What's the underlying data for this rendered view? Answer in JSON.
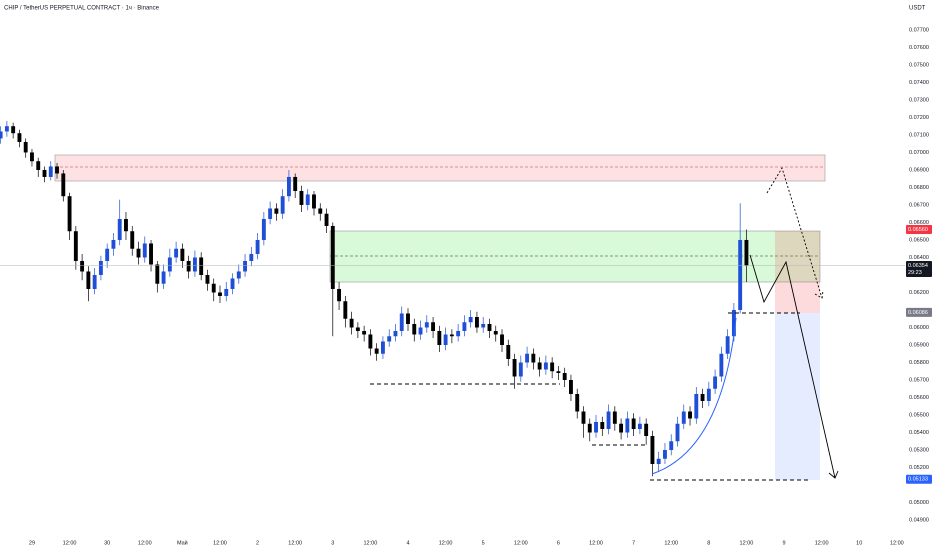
{
  "chart_data": {
    "type": "candlestick",
    "title": "CHIP / TetherUS PERPETUAL CONTRACT · 1ч · Binance",
    "currency": "USDT",
    "up_color": "#1f4fd6",
    "down_color": "#000000",
    "x": [
      -10,
      -8,
      -6,
      -4,
      -2,
      0,
      2,
      4,
      6,
      8,
      10,
      12,
      14,
      16,
      18,
      20,
      22,
      24,
      26,
      28,
      30,
      32,
      34,
      36,
      38,
      40,
      42,
      44,
      46,
      48,
      50,
      52,
      54,
      56,
      58,
      60,
      62,
      64,
      66,
      68,
      70,
      72,
      74,
      76,
      78,
      80,
      82,
      84,
      86,
      88,
      90,
      92,
      94,
      96,
      98,
      100,
      102,
      104,
      106,
      108,
      110,
      112,
      114,
      116,
      118,
      120,
      122,
      124,
      126,
      128,
      130,
      132,
      134,
      136,
      138,
      140,
      142,
      144,
      146,
      148,
      150,
      152,
      154,
      156,
      158,
      160,
      162,
      164,
      166,
      168,
      170,
      172,
      174,
      176,
      178,
      180,
      182,
      184,
      186,
      188,
      190,
      192,
      194,
      196,
      198,
      200,
      202,
      204,
      206,
      208,
      210,
      212,
      214,
      216,
      218,
      220,
      222,
      224,
      226,
      228
    ],
    "open": [
      0.0708,
      0.0712,
      0.0715,
      0.0711,
      0.0706,
      0.07,
      0.0695,
      0.069,
      0.0686,
      0.0692,
      0.0688,
      0.0675,
      0.0655,
      0.0638,
      0.0632,
      0.0622,
      0.063,
      0.0638,
      0.0645,
      0.065,
      0.0662,
      0.0655,
      0.0645,
      0.064,
      0.0648,
      0.0636,
      0.0625,
      0.0632,
      0.064,
      0.0645,
      0.0638,
      0.0632,
      0.064,
      0.063,
      0.0625,
      0.062,
      0.0618,
      0.0622,
      0.0628,
      0.0632,
      0.0638,
      0.0642,
      0.065,
      0.0662,
      0.0668,
      0.0665,
      0.0675,
      0.0686,
      0.0678,
      0.067,
      0.0676,
      0.0668,
      0.0665,
      0.0658,
      0.0622,
      0.0615,
      0.0605,
      0.06,
      0.0598,
      0.0596,
      0.0588,
      0.0585,
      0.0592,
      0.0595,
      0.0598,
      0.0608,
      0.0602,
      0.0596,
      0.06,
      0.0603,
      0.0598,
      0.059,
      0.0596,
      0.0595,
      0.0598,
      0.0603,
      0.0606,
      0.06,
      0.0602,
      0.0598,
      0.0596,
      0.059,
      0.0582,
      0.0572,
      0.058,
      0.0585,
      0.058,
      0.0576,
      0.058,
      0.0575,
      0.0574,
      0.057,
      0.0562,
      0.0552,
      0.0545,
      0.054,
      0.0546,
      0.0542,
      0.0552,
      0.0545,
      0.054,
      0.0548,
      0.0542,
      0.0545,
      0.0538,
      0.0522,
      0.0525,
      0.053,
      0.0535,
      0.0545,
      0.0552,
      0.0548,
      0.0562,
      0.0558,
      0.0565,
      0.0572,
      0.0585,
      0.0595,
      0.061,
      0.065
    ],
    "high": [
      0.0715,
      0.0718,
      0.0717,
      0.0713,
      0.0708,
      0.0702,
      0.0697,
      0.0692,
      0.0695,
      0.0694,
      0.069,
      0.0677,
      0.0658,
      0.0642,
      0.0635,
      0.0634,
      0.0641,
      0.0648,
      0.0654,
      0.0673,
      0.0666,
      0.0658,
      0.0649,
      0.0652,
      0.065,
      0.0638,
      0.0636,
      0.0645,
      0.0649,
      0.0648,
      0.0641,
      0.0644,
      0.0643,
      0.0633,
      0.0628,
      0.0624,
      0.0626,
      0.0631,
      0.0636,
      0.0642,
      0.0646,
      0.0654,
      0.0666,
      0.0672,
      0.0671,
      0.0679,
      0.069,
      0.0688,
      0.0681,
      0.0679,
      0.0678,
      0.0671,
      0.0668,
      0.066,
      0.0626,
      0.0618,
      0.0609,
      0.0603,
      0.0601,
      0.0599,
      0.0591,
      0.0595,
      0.0599,
      0.0602,
      0.0612,
      0.0611,
      0.0605,
      0.0604,
      0.0607,
      0.0606,
      0.0601,
      0.06,
      0.0599,
      0.0602,
      0.0607,
      0.061,
      0.0609,
      0.0606,
      0.0605,
      0.0601,
      0.0599,
      0.0593,
      0.0585,
      0.0584,
      0.0589,
      0.0588,
      0.0583,
      0.0584,
      0.0583,
      0.0578,
      0.0577,
      0.0573,
      0.0565,
      0.0555,
      0.0548,
      0.055,
      0.0549,
      0.0556,
      0.0555,
      0.0548,
      0.0552,
      0.0551,
      0.0549,
      0.0548,
      0.0541,
      0.0529,
      0.0534,
      0.0539,
      0.0549,
      0.0556,
      0.0555,
      0.0566,
      0.0565,
      0.0569,
      0.0576,
      0.0589,
      0.0599,
      0.0614,
      0.0671,
      0.0656
    ],
    "low": [
      0.0705,
      0.0709,
      0.0708,
      0.0703,
      0.0697,
      0.0692,
      0.0686,
      0.0683,
      0.0684,
      0.0685,
      0.0672,
      0.065,
      0.0633,
      0.0627,
      0.0615,
      0.0619,
      0.0627,
      0.0634,
      0.0641,
      0.0647,
      0.065,
      0.0641,
      0.0636,
      0.0637,
      0.0632,
      0.062,
      0.0622,
      0.0629,
      0.0637,
      0.0634,
      0.0628,
      0.0629,
      0.0627,
      0.0621,
      0.0615,
      0.0614,
      0.0615,
      0.0619,
      0.0625,
      0.0629,
      0.0635,
      0.0639,
      0.0647,
      0.0659,
      0.0661,
      0.0662,
      0.0672,
      0.0674,
      0.0666,
      0.0667,
      0.0664,
      0.0661,
      0.0654,
      0.0595,
      0.061,
      0.06,
      0.0596,
      0.0594,
      0.0592,
      0.0584,
      0.0581,
      0.0582,
      0.0589,
      0.0592,
      0.0595,
      0.0598,
      0.0592,
      0.0593,
      0.0597,
      0.0594,
      0.0586,
      0.0587,
      0.0591,
      0.0592,
      0.0595,
      0.06,
      0.0597,
      0.0597,
      0.0594,
      0.0592,
      0.0586,
      0.0578,
      0.0565,
      0.0569,
      0.0577,
      0.0576,
      0.0572,
      0.0573,
      0.0571,
      0.057,
      0.0566,
      0.0558,
      0.0548,
      0.0537,
      0.0535,
      0.0537,
      0.0538,
      0.0539,
      0.0541,
      0.0536,
      0.0537,
      0.0538,
      0.0539,
      0.0533,
      0.0515,
      0.0518,
      0.0522,
      0.0527,
      0.0532,
      0.0542,
      0.0544,
      0.0545,
      0.0554,
      0.0555,
      0.0562,
      0.0569,
      0.0582,
      0.0592,
      0.0608,
      0.0626
    ],
    "close": [
      0.0712,
      0.0715,
      0.0711,
      0.0706,
      0.07,
      0.0695,
      0.069,
      0.0686,
      0.0692,
      0.0688,
      0.0675,
      0.0655,
      0.0638,
      0.0632,
      0.0622,
      0.063,
      0.0638,
      0.0645,
      0.065,
      0.0662,
      0.0655,
      0.0645,
      0.064,
      0.0648,
      0.0636,
      0.0625,
      0.0632,
      0.064,
      0.0645,
      0.0638,
      0.0632,
      0.064,
      0.063,
      0.0625,
      0.062,
      0.0618,
      0.0622,
      0.0628,
      0.0632,
      0.0638,
      0.0642,
      0.065,
      0.0662,
      0.0668,
      0.0665,
      0.0675,
      0.0686,
      0.0678,
      0.067,
      0.0676,
      0.0668,
      0.0665,
      0.0658,
      0.0622,
      0.0615,
      0.0605,
      0.06,
      0.0598,
      0.0596,
      0.0588,
      0.0585,
      0.0592,
      0.0595,
      0.0598,
      0.0608,
      0.0602,
      0.0596,
      0.06,
      0.0603,
      0.0598,
      0.059,
      0.0596,
      0.0595,
      0.0598,
      0.0603,
      0.0606,
      0.06,
      0.0602,
      0.0598,
      0.0596,
      0.059,
      0.0582,
      0.0572,
      0.058,
      0.0585,
      0.058,
      0.0576,
      0.058,
      0.0575,
      0.0574,
      0.057,
      0.0562,
      0.0552,
      0.0545,
      0.054,
      0.0546,
      0.0542,
      0.0552,
      0.0545,
      0.054,
      0.0548,
      0.0542,
      0.0545,
      0.0538,
      0.0522,
      0.0525,
      0.053,
      0.0535,
      0.0545,
      0.0552,
      0.0548,
      0.0562,
      0.0558,
      0.0565,
      0.0572,
      0.0585,
      0.0595,
      0.061,
      0.065,
      0.06354
    ],
    "xlim": [
      -10.2,
      278.6
    ],
    "ylim": [
      0.04843,
      0.07871
    ],
    "xticks": [
      {
        "value": 0,
        "label": "29"
      },
      {
        "value": 12,
        "label": "12:00"
      },
      {
        "value": 24,
        "label": "30"
      },
      {
        "value": 36,
        "label": "12:00"
      },
      {
        "value": 48,
        "label": "Май"
      },
      {
        "value": 60,
        "label": "12:00"
      },
      {
        "value": 72,
        "label": "2"
      },
      {
        "value": 84,
        "label": "12:00"
      },
      {
        "value": 96,
        "label": "3"
      },
      {
        "value": 108,
        "label": "12:00"
      },
      {
        "value": 120,
        "label": "4"
      },
      {
        "value": 132,
        "label": "12:00"
      },
      {
        "value": 144,
        "label": "5"
      },
      {
        "value": 156,
        "label": "12:00"
      },
      {
        "value": 168,
        "label": "6"
      },
      {
        "value": 180,
        "label": "12:00"
      },
      {
        "value": 192,
        "label": "7"
      },
      {
        "value": 204,
        "label": "12:00"
      },
      {
        "value": 216,
        "label": "8"
      },
      {
        "value": 228,
        "label": "12:00"
      },
      {
        "value": 240,
        "label": "9"
      },
      {
        "value": 252,
        "label": "12:00"
      },
      {
        "value": 264,
        "label": "10"
      },
      {
        "value": 276,
        "label": "12:00"
      }
    ],
    "yticks": [
      {
        "value": 0.077,
        "label": "0.07700"
      },
      {
        "value": 0.076,
        "label": "0.07600"
      },
      {
        "value": 0.075,
        "label": "0.07500"
      },
      {
        "value": 0.074,
        "label": "0.07400"
      },
      {
        "value": 0.073,
        "label": "0.07300"
      },
      {
        "value": 0.072,
        "label": "0.07200"
      },
      {
        "value": 0.071,
        "label": "0.07100"
      },
      {
        "value": 0.07,
        "label": "0.07000"
      },
      {
        "value": 0.069,
        "label": "0.06900"
      },
      {
        "value": 0.068,
        "label": "0.06800"
      },
      {
        "value": 0.067,
        "label": "0.06700"
      },
      {
        "value": 0.066,
        "label": "0.06600"
      },
      {
        "value": 0.065,
        "label": "0.06500"
      },
      {
        "value": 0.064,
        "label": "0.06400"
      },
      {
        "value": 0.062,
        "label": "0.06200"
      },
      {
        "value": 0.06,
        "label": "0.06000"
      },
      {
        "value": 0.059,
        "label": "0.05900"
      },
      {
        "value": 0.058,
        "label": "0.05800"
      },
      {
        "value": 0.057,
        "label": "0.05700"
      },
      {
        "value": 0.056,
        "label": "0.05600"
      },
      {
        "value": 0.055,
        "label": "0.05500"
      },
      {
        "value": 0.054,
        "label": "0.05400"
      },
      {
        "value": 0.053,
        "label": "0.05300"
      },
      {
        "value": 0.052,
        "label": "0.05200"
      },
      {
        "value": 0.05,
        "label": "0.05000"
      },
      {
        "value": 0.049,
        "label": "0.04900"
      }
    ],
    "price_labels": [
      {
        "value": 0.0656,
        "label": "0.06560",
        "color": "#f23645"
      },
      {
        "value": 0.06354,
        "label": "0.06354",
        "color": "#131722"
      },
      {
        "value": 0.06086,
        "label": "0.06086",
        "color": "#787b86"
      },
      {
        "value": 0.05133,
        "label": "0.05133",
        "color": "#2962ff"
      }
    ],
    "countdown": "29:23"
  }
}
